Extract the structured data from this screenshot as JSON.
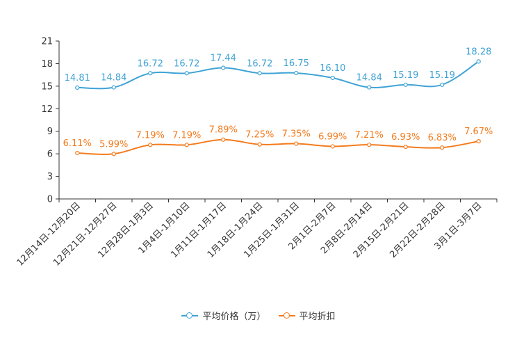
{
  "chart_data": {
    "type": "line",
    "categories": [
      "12月14日-12月20日",
      "12月21日-12月27日",
      "12月28日-1月3日",
      "1月4日-1月10日",
      "1月11日-1月17日",
      "1月18日-1月24日",
      "1月25日-1月31日",
      "2月1日-2月7日",
      "2月8日-2月14日",
      "2月15日-2月21日",
      "2月22日-2月28日",
      "3月1日-3月7日"
    ],
    "yticks": [
      0,
      3,
      6,
      9,
      12,
      15,
      18,
      21
    ],
    "ylim": [
      0,
      21
    ],
    "series": [
      {
        "name": "平均价格（万）",
        "color": "#3fa3d5",
        "values": [
          14.81,
          14.84,
          16.72,
          16.72,
          17.44,
          16.72,
          16.75,
          16.1,
          14.84,
          15.19,
          15.19,
          18.28
        ],
        "labels": [
          "14.81",
          "14.84",
          "16.72",
          "16.72",
          "17.44",
          "16.72",
          "16.75",
          "16.10",
          "14.84",
          "15.19",
          "15.19",
          "18.28"
        ]
      },
      {
        "name": "平均折扣",
        "color": "#f47b1c",
        "values": [
          6.11,
          5.99,
          7.19,
          7.19,
          7.89,
          7.25,
          7.35,
          6.99,
          7.21,
          6.93,
          6.83,
          7.67
        ],
        "labels": [
          "6.11%",
          "5.99%",
          "7.19%",
          "7.19%",
          "7.89%",
          "7.25%",
          "7.35%",
          "6.99%",
          "7.21%",
          "6.93%",
          "6.83%",
          "7.67%"
        ]
      }
    ]
  }
}
